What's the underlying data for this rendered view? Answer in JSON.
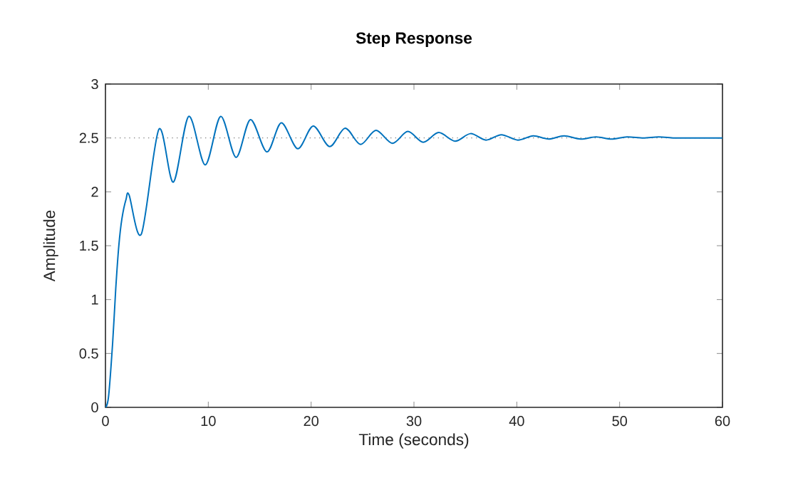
{
  "chart_data": {
    "type": "line",
    "title": "Step Response",
    "xlabel": "Time (seconds)",
    "ylabel": "Amplitude",
    "xlim": [
      0,
      60
    ],
    "ylim": [
      0,
      3
    ],
    "xticks": [
      0,
      10,
      20,
      30,
      40,
      50,
      60
    ],
    "yticks": [
      0,
      0.5,
      1,
      1.5,
      2,
      2.5,
      3
    ],
    "x": [
      0,
      0.3,
      0.7,
      1.0,
      1.3,
      1.6,
      2.0,
      2.3,
      3.5,
      5.2,
      6.6,
      8.1,
      9.7,
      11.2,
      12.7,
      14.1,
      15.7,
      17.1,
      18.7,
      20.2,
      21.8,
      23.3,
      24.8,
      26.3,
      27.9,
      29.4,
      30.9,
      32.4,
      34.0,
      35.5,
      37.0,
      38.5,
      40.1,
      41.6,
      43.1,
      44.6,
      46.2,
      47.7,
      49.2,
      50.7,
      52.3,
      53.8,
      55.3,
      56.8,
      58.4,
      60
    ],
    "series": [
      {
        "color": "#0072bd",
        "values": [
          0,
          0.1,
          0.6,
          1.1,
          1.5,
          1.75,
          1.93,
          1.97,
          1.61,
          2.58,
          2.09,
          2.7,
          2.25,
          2.7,
          2.32,
          2.67,
          2.37,
          2.64,
          2.4,
          2.61,
          2.42,
          2.59,
          2.44,
          2.57,
          2.45,
          2.56,
          2.46,
          2.55,
          2.47,
          2.54,
          2.48,
          2.53,
          2.48,
          2.52,
          2.49,
          2.52,
          2.49,
          2.51,
          2.49,
          2.51,
          2.5,
          2.51,
          2.5,
          2.5,
          2.5,
          2.5
        ]
      }
    ],
    "ref_lines": [
      {
        "axis": "y",
        "value": 2.5,
        "color": "#808080",
        "line_style": "dotted"
      }
    ],
    "grid": false,
    "marker": "none",
    "line_style": "solid"
  }
}
